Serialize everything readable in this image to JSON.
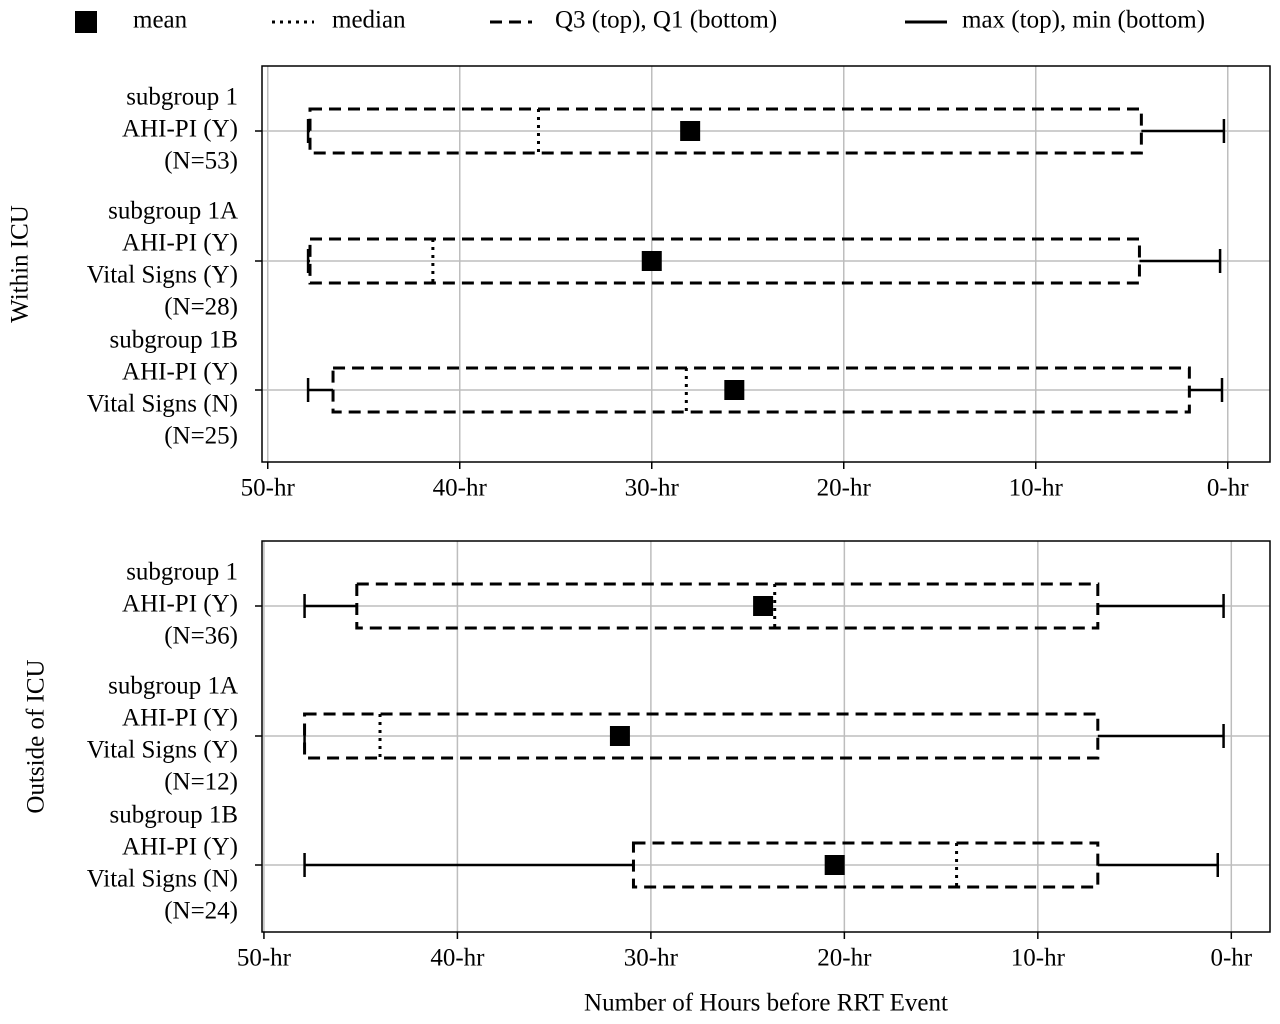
{
  "legend": [
    "mean",
    "median",
    "Q3 (top), Q1 (bottom)",
    "max (top), min (bottom)"
  ],
  "chart_data": [
    {
      "type": "boxplot",
      "orientation": "horizontal",
      "y_label": "Within ICU",
      "color": "#000000",
      "grid": true,
      "categories": [
        [
          "subgroup 1",
          "AHI-PI (Y)",
          "(N=53)"
        ],
        [
          "subgroup 1A",
          "AHI-PI (Y)",
          "Vital Signs (Y)",
          "(N=28)"
        ],
        [
          "subgroup 1B",
          "AHI-PI (Y)",
          "Vital Signs (N)",
          "(N=25)"
        ]
      ],
      "stats": [
        {
          "min": 0.2,
          "q1": 4.5,
          "median": 35.9,
          "mean": 28.0,
          "q3": 47.8,
          "max": 47.9
        },
        {
          "min": 0.4,
          "q1": 4.6,
          "median": 41.4,
          "mean": 30.0,
          "q3": 47.8,
          "max": 47.9
        },
        {
          "min": 0.3,
          "q1": 2.0,
          "median": 28.2,
          "mean": 25.7,
          "q3": 46.6,
          "max": 47.9
        }
      ],
      "xlim": [
        50.3,
        -2.2
      ],
      "xticks": [
        {
          "value": 50,
          "label": "50-hr"
        },
        {
          "value": 40,
          "label": "40-hr"
        },
        {
          "value": 30,
          "label": "30-hr"
        },
        {
          "value": 20,
          "label": "20-hr"
        },
        {
          "value": 10,
          "label": "10-hr"
        },
        {
          "value": 0,
          "label": "0-hr"
        }
      ]
    },
    {
      "type": "boxplot",
      "orientation": "horizontal",
      "y_label": "Outside of ICU",
      "x_label": "Number of Hours before RRT Event",
      "color": "#000000",
      "grid": true,
      "categories": [
        [
          "subgroup 1",
          "AHI-PI (Y)",
          "(N=36)"
        ],
        [
          "subgroup 1A",
          "AHI-PI (Y)",
          "Vital Signs (Y)",
          "(N=12)"
        ],
        [
          "subgroup 1B",
          "AHI-PI (Y)",
          "Vital Signs (N)",
          "(N=24)"
        ]
      ],
      "stats": [
        {
          "min": 0.4,
          "q1": 6.9,
          "median": 23.6,
          "mean": 24.2,
          "q3": 45.2,
          "max": 47.9
        },
        {
          "min": 0.4,
          "q1": 6.9,
          "median": 44.0,
          "mean": 31.6,
          "q3": 47.9,
          "max": 47.9
        },
        {
          "min": 0.7,
          "q1": 6.9,
          "median": 14.2,
          "mean": 20.5,
          "q3": 30.9,
          "max": 47.9
        }
      ],
      "xlim": [
        50.1,
        -2.0
      ],
      "xticks": [
        {
          "value": 50,
          "label": "50-hr"
        },
        {
          "value": 40,
          "label": "40-hr"
        },
        {
          "value": 30,
          "label": "30-hr"
        },
        {
          "value": 20,
          "label": "20-hr"
        },
        {
          "value": 10,
          "label": "10-hr"
        },
        {
          "value": 0,
          "label": "0-hr"
        }
      ]
    }
  ]
}
